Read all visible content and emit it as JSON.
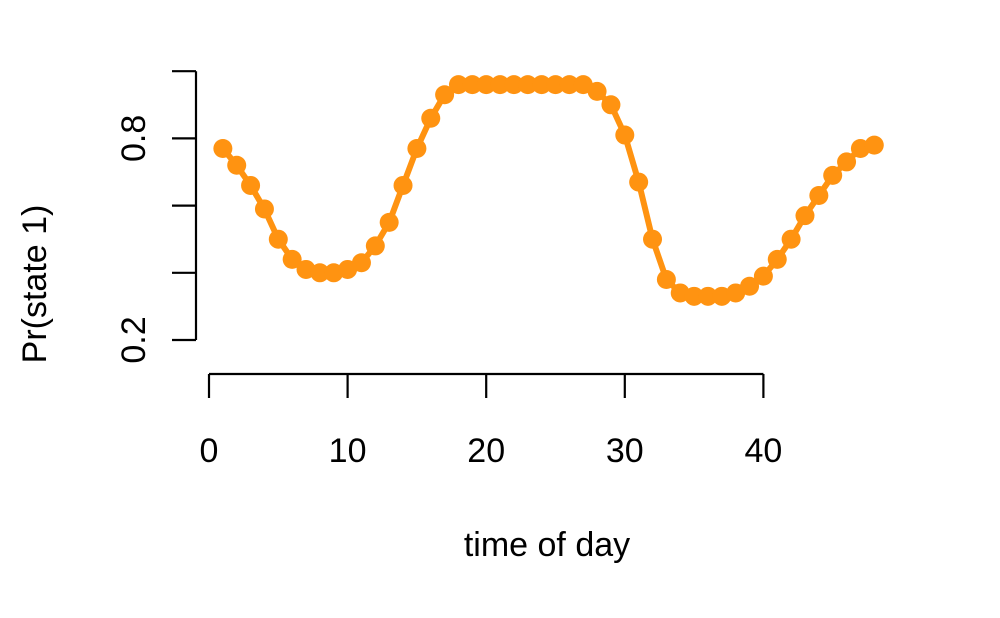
{
  "chart_data": {
    "type": "line",
    "title": "",
    "xlabel": "time of day",
    "ylabel": "Pr(state 1)",
    "xlim": [
      0,
      48
    ],
    "ylim": [
      0,
      1
    ],
    "x_ticks": [
      0,
      10,
      20,
      30,
      40
    ],
    "y_ticks": [
      0.2,
      0.4,
      0.6,
      0.8,
      1.0
    ],
    "y_tick_labels": [
      "0.2",
      "",
      "",
      "0.8",
      ""
    ],
    "grid": false,
    "legend": "none",
    "color": "#ff9311",
    "series": [
      {
        "x": [
          1,
          2,
          3,
          4,
          5,
          6,
          7,
          8,
          9,
          10,
          11,
          12,
          13,
          14,
          15,
          16,
          17,
          18,
          19,
          20,
          21,
          22,
          23,
          24,
          25,
          26,
          27,
          28,
          29,
          30,
          31,
          32,
          33,
          34,
          35,
          36,
          37,
          38,
          39,
          40,
          41,
          42,
          43,
          44,
          45,
          46,
          47,
          48
        ],
        "values": [
          0.77,
          0.72,
          0.66,
          0.59,
          0.5,
          0.44,
          0.41,
          0.4,
          0.4,
          0.41,
          0.43,
          0.48,
          0.55,
          0.66,
          0.77,
          0.86,
          0.93,
          0.96,
          0.96,
          0.96,
          0.96,
          0.96,
          0.96,
          0.96,
          0.96,
          0.96,
          0.96,
          0.94,
          0.9,
          0.81,
          0.67,
          0.5,
          0.38,
          0.34,
          0.33,
          0.33,
          0.33,
          0.34,
          0.36,
          0.39,
          0.44,
          0.5,
          0.57,
          0.63,
          0.69,
          0.73,
          0.77,
          0.78
        ]
      }
    ]
  }
}
